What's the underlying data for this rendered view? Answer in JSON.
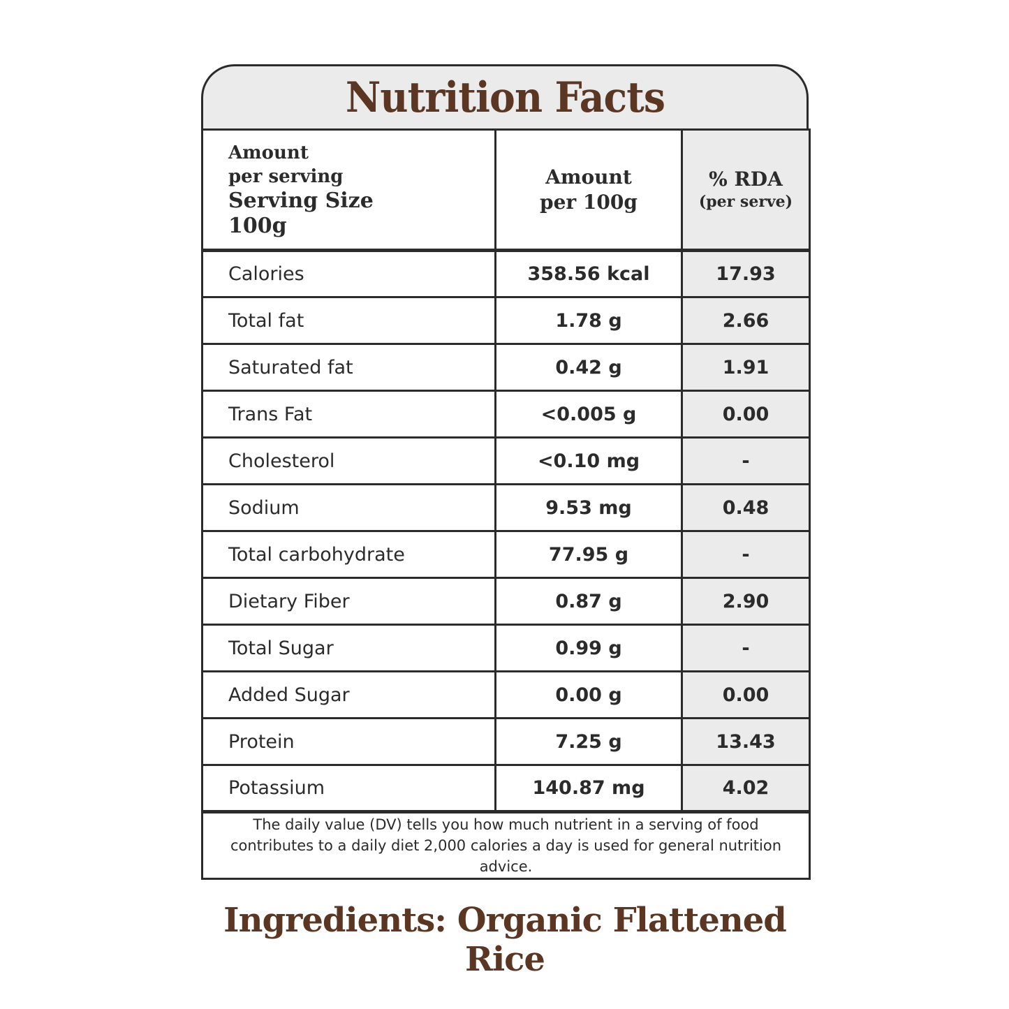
{
  "title": "Nutrition Facts",
  "header": {
    "col1_line1": "Amount",
    "col1_line2": "per serving",
    "col1_line3": "Serving Size",
    "col1_line4": "100g",
    "col2_line1": "Amount",
    "col2_line2": "per 100g",
    "col3_line1": "% RDA",
    "col3_line2": "(per serve)"
  },
  "rows": [
    {
      "name": "Calories",
      "amount": "358.56 kcal",
      "rda": "17.93"
    },
    {
      "name": "Total fat",
      "amount": "1.78 g",
      "rda": "2.66"
    },
    {
      "name": "Saturated fat",
      "amount": "0.42 g",
      "rda": "1.91"
    },
    {
      "name": "Trans Fat",
      "amount": "<0.005 g",
      "rda": "0.00"
    },
    {
      "name": "Cholesterol",
      "amount": "<0.10 mg",
      "rda": "-"
    },
    {
      "name": "Sodium",
      "amount": "9.53 mg",
      "rda": "0.48"
    },
    {
      "name": "Total carbohydrate",
      "amount": "77.95 g",
      "rda": "-"
    },
    {
      "name": "Dietary Fiber",
      "amount": "0.87 g",
      "rda": "2.90"
    },
    {
      "name": "Total Sugar",
      "amount": "0.99 g",
      "rda": "-"
    },
    {
      "name": "Added Sugar",
      "amount": "0.00 g",
      "rda": "0.00"
    },
    {
      "name": "Protein",
      "amount": "7.25 g",
      "rda": "13.43"
    },
    {
      "name": "Potassium",
      "amount": "140.87 mg",
      "rda": "4.02"
    }
  ],
  "footnote": "The daily value (DV) tells you how much nutrient in a serving of food contributes to a daily diet 2,000 calories a day is used for general nutrition advice.",
  "ingredients": "Ingredients: Organic Flattened Rice",
  "colors": {
    "title_brown": "#5a3623",
    "shade_gray": "#ebebeb",
    "border": "#2b2b2b"
  }
}
